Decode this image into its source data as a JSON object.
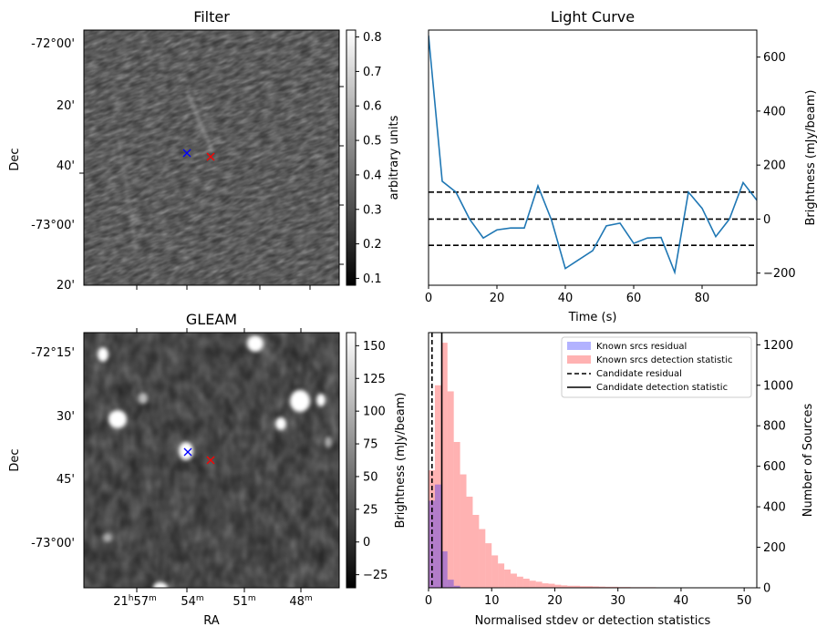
{
  "chart_data": [
    {
      "type": "heatmap",
      "title": "Filter",
      "xlabel": "",
      "ylabel": "Dec",
      "y_ticks": [
        "-72°00'",
        "20'",
        "40'",
        "-73°00'",
        "20'"
      ],
      "colorbar": {
        "label": "arbitrary units",
        "range": [
          0.08,
          0.82
        ],
        "ticks": [
          "0.1",
          "0.2",
          "0.3",
          "0.4",
          "0.5",
          "0.6",
          "0.7",
          "0.8"
        ],
        "tick_values": [
          0.1,
          0.2,
          0.3,
          0.4,
          0.5,
          0.6,
          0.7,
          0.8
        ]
      },
      "markers": [
        {
          "symbol": "x",
          "color": "#0000ff"
        },
        {
          "symbol": "x",
          "color": "#ff0000"
        }
      ]
    },
    {
      "type": "line",
      "title": "Light Curve",
      "xlabel": "Time (s)",
      "ylabel": "Brightness (mJy/beam)",
      "xlim": [
        0,
        96
      ],
      "ylim": [
        -245,
        700
      ],
      "x_ticks": [
        0,
        20,
        40,
        60,
        80
      ],
      "y_ticks": [
        -200,
        0,
        200,
        400,
        600
      ],
      "series": [
        {
          "color": "#1f77b4",
          "x": [
            0,
            4,
            8,
            12,
            16,
            20,
            24,
            28,
            32,
            36,
            40,
            44,
            48,
            52,
            56,
            60,
            64,
            68,
            72,
            76,
            80,
            84,
            88,
            92,
            96
          ],
          "y": [
            680,
            140,
            100,
            0,
            -70,
            -40,
            -33,
            -33,
            123,
            -5,
            -183,
            -150,
            -117,
            -25,
            -15,
            -90,
            -70,
            -68,
            -197,
            100,
            40,
            -65,
            0,
            135,
            70
          ]
        }
      ],
      "hlines": [
        {
          "y": 100,
          "style": "dashed"
        },
        {
          "y": 0,
          "style": "dashed"
        },
        {
          "y": -97,
          "style": "dashed"
        }
      ]
    },
    {
      "type": "heatmap",
      "title": "GLEAM",
      "xlabel": "RA",
      "ylabel": "Dec",
      "x_ticks": [
        {
          "main": "21",
          "h": "h",
          "m_val": "57",
          "m": "m"
        },
        {
          "main": "54",
          "h": "",
          "m_val": "",
          "m": "m"
        },
        {
          "main": "51",
          "h": "",
          "m_val": "",
          "m": "m"
        },
        {
          "main": "48",
          "h": "",
          "m_val": "",
          "m": "m"
        }
      ],
      "y_ticks": [
        "-72°15'",
        "30'",
        "45'",
        "-73°00'"
      ],
      "colorbar": {
        "label": "Brightness (mJy/beam)",
        "range": [
          -35,
          160
        ],
        "ticks": [
          "−25",
          "0",
          "25",
          "50",
          "75",
          "100",
          "125",
          "150"
        ],
        "tick_values": [
          -25,
          0,
          25,
          50,
          75,
          100,
          125,
          150
        ]
      },
      "markers": [
        {
          "symbol": "x",
          "color": "#0000ff"
        },
        {
          "symbol": "x",
          "color": "#ff0000"
        }
      ]
    },
    {
      "type": "bar",
      "title": "",
      "xlabel": "Normalised stdev or detection statistics",
      "ylabel": "Number of Sources",
      "xlim": [
        0,
        52
      ],
      "ylim": [
        0,
        1260
      ],
      "x_ticks": [
        0,
        10,
        20,
        30,
        40,
        50
      ],
      "y_ticks": [
        0,
        200,
        400,
        600,
        800,
        1000,
        1200
      ],
      "bin_width": 1,
      "series": [
        {
          "name": "Known srcs residual",
          "color": "#0000ff",
          "opacity": 0.3,
          "bin_starts": [
            0,
            1,
            2,
            3,
            4
          ],
          "counts": [
            430,
            510,
            180,
            40,
            10
          ]
        },
        {
          "name": "Known srcs detection statistic",
          "color": "#ff0000",
          "opacity": 0.3,
          "bin_starts": [
            0,
            1,
            2,
            3,
            4,
            5,
            6,
            7,
            8,
            9,
            10,
            11,
            12,
            13,
            14,
            15,
            16,
            17,
            18,
            19,
            20,
            21,
            22,
            23,
            24,
            25,
            26,
            27,
            28,
            29,
            30,
            31,
            32,
            33,
            34,
            35,
            36,
            37,
            38,
            39,
            40,
            41,
            42,
            43,
            44,
            45,
            46,
            47,
            48,
            49
          ],
          "counts": [
            580,
            1000,
            1210,
            970,
            720,
            560,
            450,
            360,
            290,
            220,
            160,
            120,
            90,
            70,
            55,
            45,
            35,
            30,
            22,
            20,
            15,
            12,
            10,
            10,
            8,
            8,
            7,
            6,
            5,
            5,
            4,
            4,
            3,
            3,
            3,
            3,
            2,
            2,
            2,
            2,
            2,
            2,
            2,
            2,
            2,
            2,
            2,
            2,
            2,
            2
          ]
        }
      ],
      "vlines": [
        {
          "name": "Candidate residual",
          "x": 0.55,
          "style": "dashed"
        },
        {
          "name": "Candidate detection statistic",
          "x": 2.1,
          "style": "solid"
        }
      ],
      "legend_position": "top-right"
    }
  ]
}
